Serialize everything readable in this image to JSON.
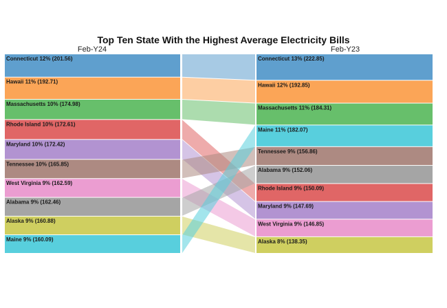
{
  "chart_data": {
    "type": "slope-rank",
    "title": "Top Ten State With the Highest Average Electricity Bills",
    "left_column_label": "Feb-Y24",
    "right_column_label": "Feb-Y23",
    "states": [
      {
        "name": "Connecticut",
        "color": "#5f9fce",
        "y24_label": "Connecticut 12% (201.56)",
        "y24_value": 201.56,
        "y23_label": "Connecticut 13% (222.85)",
        "y23_value": 222.85
      },
      {
        "name": "Hawaii",
        "color": "#fba557",
        "y24_label": "Hawaii 11% (192.71)",
        "y24_value": 192.71,
        "y23_label": "Hawaii 12% (192.85)",
        "y23_value": 192.85
      },
      {
        "name": "Massachusetts",
        "color": "#67bf6b",
        "y24_label": "Massachusetts 10% (174.98)",
        "y24_value": 174.98,
        "y23_label": "Massachusetts 11% (184.31)",
        "y23_value": 184.31
      },
      {
        "name": "Rhode Island",
        "color": "#e06666",
        "y24_label": "Rhode Island 10% (172.61)",
        "y24_value": 172.61,
        "y23_label": "Rhode Island 9% (150.09)",
        "y23_value": 150.09
      },
      {
        "name": "Maryland",
        "color": "#b293d1",
        "y24_label": "Maryland 10% (172.42)",
        "y24_value": 172.42,
        "y23_label": "Maryland 9% (147.69)",
        "y23_value": 147.69
      },
      {
        "name": "Tennessee",
        "color": "#ad8a82",
        "y24_label": "Tennessee 10% (165.85)",
        "y24_value": 165.85,
        "y23_label": "Tennessee 9% (156.86)",
        "y23_value": 156.86
      },
      {
        "name": "West Virginia",
        "color": "#eb9dd1",
        "y24_label": "West Virginia 9% (162.59)",
        "y24_value": 162.59,
        "y23_label": "West Virginia 9% (146.85)",
        "y23_value": 146.85
      },
      {
        "name": "Alabama",
        "color": "#a5a5a5",
        "y24_label": "Alabama 9% (162.46)",
        "y24_value": 162.46,
        "y23_label": "Alabama 9% (152.06)",
        "y23_value": 152.06
      },
      {
        "name": "Alaska",
        "color": "#cfcf60",
        "y24_label": "Alaska 9% (160.88)",
        "y24_value": 160.88,
        "y23_label": "Alaska 8% (138.35)",
        "y23_value": 138.35
      },
      {
        "name": "Maine",
        "color": "#58cfdd",
        "y24_label": "Maine 9% (160.09)",
        "y24_value": 160.09,
        "y23_label": "Maine 11% (182.07)",
        "y23_value": 182.07
      }
    ]
  }
}
